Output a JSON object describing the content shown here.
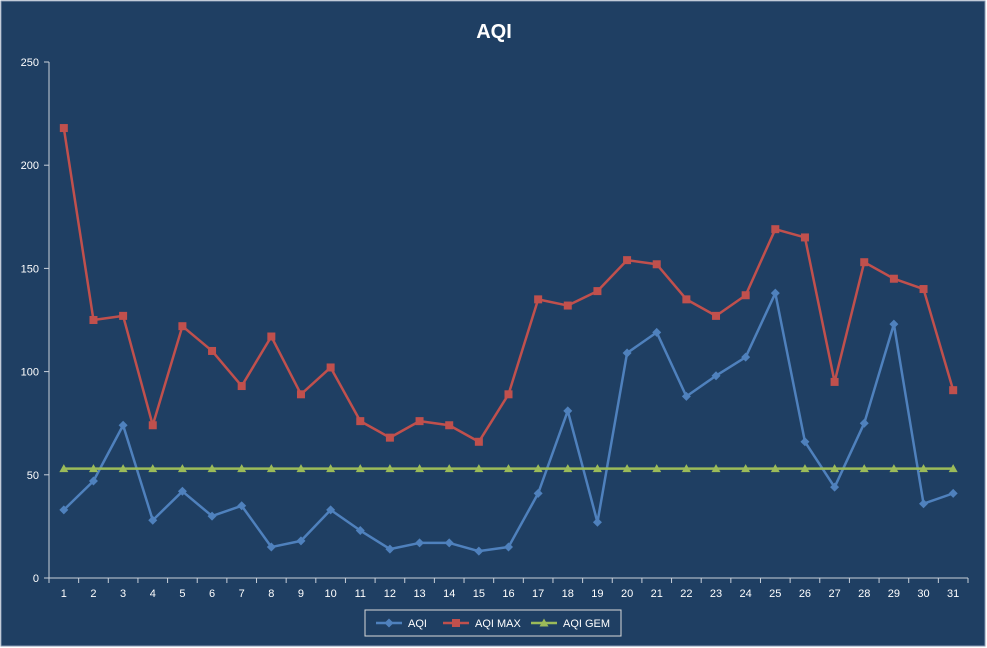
{
  "colors": {
    "background": "#1F3F63",
    "border": "#8497B0",
    "text": "#FFFFFF",
    "axis": "#C8D0DA",
    "aqi": "#4F81BD",
    "aqi_max": "#C0504D",
    "aqi_gem": "#9BBB59"
  },
  "chart_data": {
    "type": "line",
    "title": "AQI",
    "xlabel": "",
    "ylabel": "",
    "ylim": [
      0,
      250
    ],
    "yticks": [
      0,
      50,
      100,
      150,
      200,
      250
    ],
    "grid": false,
    "legend_position": "bottom",
    "categories": [
      "1",
      "2",
      "3",
      "4",
      "5",
      "6",
      "7",
      "8",
      "9",
      "10",
      "11",
      "12",
      "13",
      "14",
      "15",
      "16",
      "17",
      "18",
      "19",
      "20",
      "21",
      "22",
      "23",
      "24",
      "25",
      "26",
      "27",
      "28",
      "29",
      "30",
      "31"
    ],
    "series": [
      {
        "name": "AQI",
        "color": "#4F81BD",
        "marker": "diamond",
        "values": [
          33,
          47,
          74,
          28,
          42,
          30,
          35,
          15,
          18,
          33,
          23,
          14,
          17,
          17,
          13,
          15,
          41,
          81,
          27,
          109,
          119,
          88,
          98,
          107,
          138,
          66,
          44,
          75,
          123,
          36,
          41
        ]
      },
      {
        "name": "AQI MAX",
        "color": "#C0504D",
        "marker": "square",
        "values": [
          218,
          125,
          127,
          74,
          122,
          110,
          93,
          117,
          89,
          102,
          76,
          68,
          76,
          74,
          66,
          89,
          135,
          132,
          139,
          154,
          152,
          135,
          127,
          137,
          169,
          165,
          95,
          153,
          145,
          140,
          91
        ]
      },
      {
        "name": "AQI GEM",
        "color": "#9BBB59",
        "marker": "triangle",
        "values": [
          53,
          53,
          53,
          53,
          53,
          53,
          53,
          53,
          53,
          53,
          53,
          53,
          53,
          53,
          53,
          53,
          53,
          53,
          53,
          53,
          53,
          53,
          53,
          53,
          53,
          53,
          53,
          53,
          53,
          53,
          53
        ]
      }
    ]
  }
}
